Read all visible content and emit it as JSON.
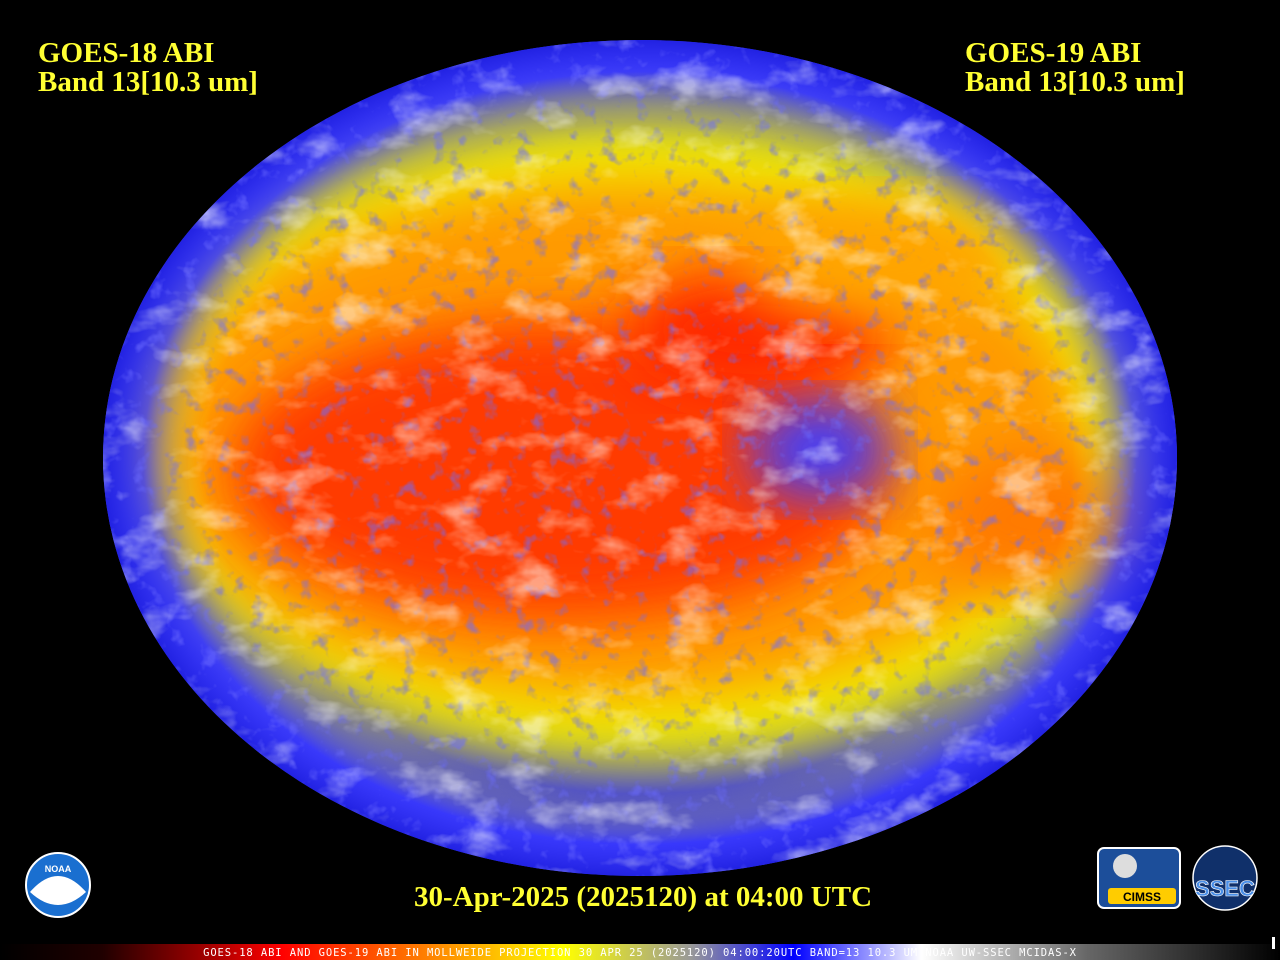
{
  "header": {
    "left": {
      "line1": "GOES-18 ABI",
      "line2": "Band 13[10.3 um]"
    },
    "right": {
      "line1": "GOES-19 ABI",
      "line2": "Band 13[10.3 um]"
    }
  },
  "timestamp": "30-Apr-2025 (2025120) at 04:00 UTC",
  "footer": "GOES-18 ABI AND GOES-19 ABI IN MOLLWEIDE PROJECTION 30 APR 25 (2025120) 04:00:20UTC BAND=13 10.3 UM NOAA UW-SSEC MCIDAS-X",
  "logos": {
    "noaa": "NOAA",
    "cimss": "CIMSS",
    "ssec": "SSEC"
  }
}
